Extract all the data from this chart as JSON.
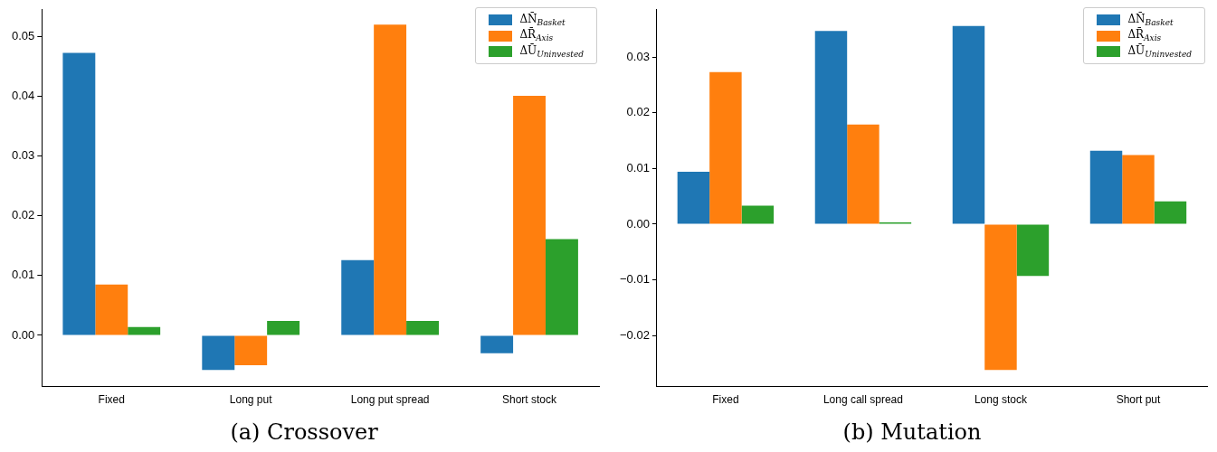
{
  "chart_data": [
    {
      "type": "bar",
      "title": "(a) Crossover",
      "categories": [
        "Fixed",
        "Long put",
        "Long put spread",
        "Short stock"
      ],
      "series": [
        {
          "name": "ΔN̄$_{Basket}$",
          "color": "#1f77b4",
          "values": [
            0.0473,
            -0.0058,
            0.0126,
            -0.003
          ]
        },
        {
          "name": "ΔR̄$_{Axis}$",
          "color": "#ff7f0e",
          "values": [
            0.0085,
            -0.005,
            0.052,
            0.0401
          ]
        },
        {
          "name": "ΔŪ$_{Uninvested}$",
          "color": "#2ca02c",
          "values": [
            0.0014,
            0.0024,
            0.0024,
            0.0161
          ]
        }
      ],
      "ylim": [
        -0.0086,
        0.0545
      ],
      "yticks": [
        {
          "value": 0,
          "label": "0.00"
        },
        {
          "value": 0.01,
          "label": "0.01"
        },
        {
          "value": 0.02,
          "label": "0.02"
        },
        {
          "value": 0.03,
          "label": "0.03"
        },
        {
          "value": 0.04,
          "label": "0.04"
        },
        {
          "value": 0.05,
          "label": "0.05"
        }
      ],
      "grid": false,
      "legend": "top right"
    },
    {
      "type": "bar",
      "title": "(b) Mutation",
      "categories": [
        "Fixed",
        "Long call spread",
        "Long stock",
        "Short put"
      ],
      "series": [
        {
          "name": "ΔN̄$_{Basket}$",
          "color": "#1f77b4",
          "values": [
            0.0094,
            0.0347,
            0.0356,
            0.0132
          ]
        },
        {
          "name": "ΔR̄$_{Axis}$",
          "color": "#ff7f0e",
          "values": [
            0.0273,
            0.0179,
            -0.0262,
            0.0124
          ]
        },
        {
          "name": "ΔŪ$_{Uninvested}$",
          "color": "#2ca02c",
          "values": [
            0.0033,
            0.0003,
            -0.0093,
            0.0041
          ]
        }
      ],
      "ylim": [
        -0.0292,
        0.0385
      ],
      "yticks": [
        {
          "value": -0.02,
          "label": "−0.02"
        },
        {
          "value": -0.01,
          "label": "−0.01"
        },
        {
          "value": 0,
          "label": "0.00"
        },
        {
          "value": 0.01,
          "label": "0.01"
        },
        {
          "value": 0.02,
          "label": "0.02"
        },
        {
          "value": 0.03,
          "label": "0.03"
        }
      ],
      "grid": false,
      "legend": "top right"
    }
  ]
}
